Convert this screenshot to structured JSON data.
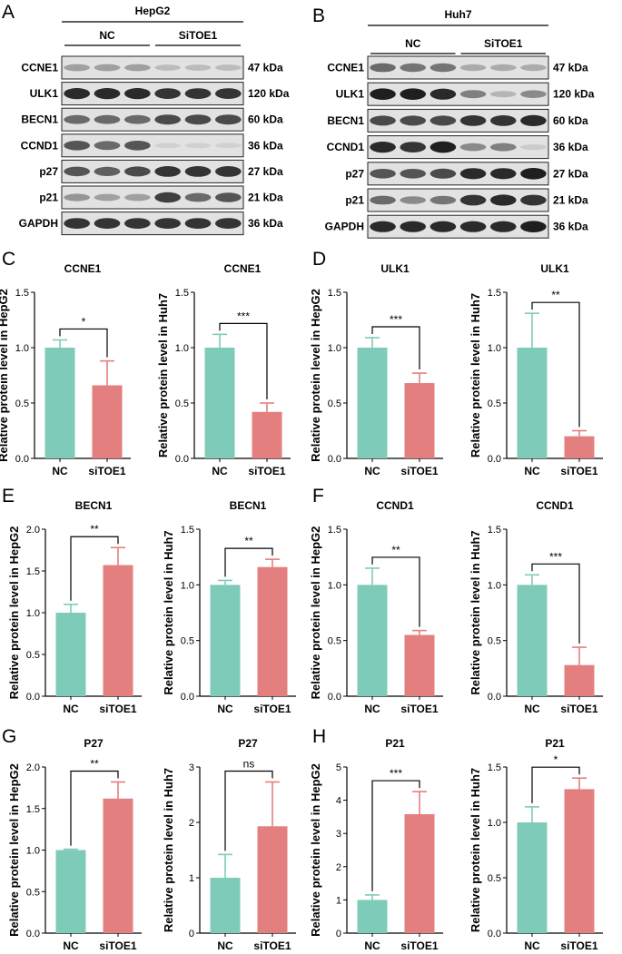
{
  "panels": {
    "A": "A",
    "B": "B",
    "C": "C",
    "D": "D",
    "E": "E",
    "F": "F",
    "G": "G",
    "H": "H"
  },
  "western_blots": [
    {
      "cell_line": "HepG2",
      "groups": [
        "NC",
        "SiTOE1"
      ],
      "rows": [
        {
          "protein": "CCNE1",
          "size": "47 kDa",
          "intensity": [
            0.35,
            0.35,
            0.35,
            0.22,
            0.22,
            0.22
          ]
        },
        {
          "protein": "ULK1",
          "size": "120 kDa",
          "intensity": [
            0.9,
            0.9,
            0.9,
            0.85,
            0.85,
            0.85
          ]
        },
        {
          "protein": "BECN1",
          "size": "60 kDa",
          "intensity": [
            0.6,
            0.6,
            0.6,
            0.75,
            0.75,
            0.75
          ]
        },
        {
          "protein": "CCND1",
          "size": "36 kDa",
          "intensity": [
            0.7,
            0.6,
            0.7,
            0.12,
            0.12,
            0.12
          ]
        },
        {
          "protein": "p27",
          "size": "27 kDa",
          "intensity": [
            0.7,
            0.65,
            0.75,
            0.85,
            0.85,
            0.85
          ]
        },
        {
          "protein": "p21",
          "size": "21 kDa",
          "intensity": [
            0.4,
            0.35,
            0.35,
            0.8,
            0.6,
            0.7
          ]
        },
        {
          "protein": "GAPDH",
          "size": "36 kDa",
          "intensity": [
            0.85,
            0.85,
            0.85,
            0.85,
            0.85,
            0.85
          ]
        }
      ]
    },
    {
      "cell_line": "Huh7",
      "groups": [
        "NC",
        "SiTOE1"
      ],
      "rows": [
        {
          "protein": "CCNE1",
          "size": "47 kDa",
          "intensity": [
            0.6,
            0.55,
            0.55,
            0.3,
            0.3,
            0.3
          ]
        },
        {
          "protein": "ULK1",
          "size": "120 kDa",
          "intensity": [
            0.95,
            0.95,
            0.9,
            0.5,
            0.25,
            0.45
          ]
        },
        {
          "protein": "BECN1",
          "size": "60 kDa",
          "intensity": [
            0.75,
            0.75,
            0.75,
            0.85,
            0.85,
            0.9
          ]
        },
        {
          "protein": "CCND1",
          "size": "36 kDa",
          "intensity": [
            0.9,
            0.85,
            0.95,
            0.45,
            0.5,
            0.15
          ]
        },
        {
          "protein": "p27",
          "size": "27 kDa",
          "intensity": [
            0.7,
            0.7,
            0.75,
            0.9,
            0.9,
            0.95
          ]
        },
        {
          "protein": "p21",
          "size": "21 kDa",
          "intensity": [
            0.6,
            0.45,
            0.55,
            0.85,
            0.9,
            0.85
          ]
        },
        {
          "protein": "GAPDH",
          "size": "36 kDa",
          "intensity": [
            0.9,
            0.9,
            0.9,
            0.9,
            0.9,
            0.95
          ]
        }
      ]
    }
  ],
  "colors": {
    "nc": "#7fcbba",
    "sitoe1": "#e47f7f",
    "band": "#151515"
  },
  "chart_data": [
    {
      "type": "bar",
      "panel": "C",
      "title": "CCNE1",
      "ylabel": "Relative protein level in HepG2",
      "categories": [
        "NC",
        "siTOE1"
      ],
      "values": [
        1.0,
        0.66
      ],
      "errors": [
        0.07,
        0.22
      ],
      "ylim": [
        0,
        1.5
      ],
      "yticks": [
        "0.0",
        "0.5",
        "1.0",
        "1.5"
      ],
      "significance": "*"
    },
    {
      "type": "bar",
      "panel": "C",
      "title": "CCNE1",
      "ylabel": "Relative protein level in Huh7",
      "categories": [
        "NC",
        "siTOE1"
      ],
      "values": [
        1.0,
        0.42
      ],
      "errors": [
        0.12,
        0.08
      ],
      "ylim": [
        0,
        1.5
      ],
      "yticks": [
        "0.0",
        "0.5",
        "1.0",
        "1.5"
      ],
      "significance": "***"
    },
    {
      "type": "bar",
      "panel": "D",
      "title": "ULK1",
      "ylabel": "Relative protein level in HepG2",
      "categories": [
        "NC",
        "siTOE1"
      ],
      "values": [
        1.0,
        0.68
      ],
      "errors": [
        0.09,
        0.09
      ],
      "ylim": [
        0,
        1.5
      ],
      "yticks": [
        "0.0",
        "0.5",
        "1.0",
        "1.5"
      ],
      "significance": "***"
    },
    {
      "type": "bar",
      "panel": "D",
      "title": "ULK1",
      "ylabel": "Relative protein level in Huh7",
      "categories": [
        "NC",
        "siTOE1"
      ],
      "values": [
        1.0,
        0.2
      ],
      "errors": [
        0.31,
        0.05
      ],
      "ylim": [
        0,
        1.5
      ],
      "yticks": [
        "0.0",
        "0.5",
        "1.0",
        "1.5"
      ],
      "significance": "**"
    },
    {
      "type": "bar",
      "panel": "E",
      "title": "BECN1",
      "ylabel": "Relative protein level in HepG2",
      "categories": [
        "NC",
        "siTOE1"
      ],
      "values": [
        1.0,
        1.57
      ],
      "errors": [
        0.1,
        0.21
      ],
      "ylim": [
        0,
        2.0
      ],
      "yticks": [
        "0.0",
        "0.5",
        "1.0",
        "1.5",
        "2.0"
      ],
      "significance": "**"
    },
    {
      "type": "bar",
      "panel": "E",
      "title": "BECN1",
      "ylabel": "Relative protein level in Huh7",
      "categories": [
        "NC",
        "siTOE1"
      ],
      "values": [
        1.0,
        1.16
      ],
      "errors": [
        0.04,
        0.07
      ],
      "ylim": [
        0,
        1.5
      ],
      "yticks": [
        "0.0",
        "0.5",
        "1.0",
        "1.5"
      ],
      "significance": "**"
    },
    {
      "type": "bar",
      "panel": "F",
      "title": "CCND1",
      "ylabel": "Relative protein level in HepG2",
      "categories": [
        "NC",
        "siTOE1"
      ],
      "values": [
        1.0,
        0.55
      ],
      "errors": [
        0.15,
        0.04
      ],
      "ylim": [
        0,
        1.5
      ],
      "yticks": [
        "0.0",
        "0.5",
        "1.0",
        "1.5"
      ],
      "significance": "**"
    },
    {
      "type": "bar",
      "panel": "F",
      "title": "CCND1",
      "ylabel": "Relative protein level in Huh7",
      "categories": [
        "NC",
        "siTOE1"
      ],
      "values": [
        1.0,
        0.28
      ],
      "errors": [
        0.09,
        0.16
      ],
      "ylim": [
        0,
        1.5
      ],
      "yticks": [
        "0.0",
        "0.5",
        "1.0",
        "1.5"
      ],
      "significance": "***"
    },
    {
      "type": "bar",
      "panel": "G",
      "title": "P27",
      "ylabel": "Relative protein level in HepG2",
      "categories": [
        "NC",
        "siTOE1"
      ],
      "values": [
        1.0,
        1.62
      ],
      "errors": [
        0.01,
        0.2
      ],
      "ylim": [
        0,
        2.0
      ],
      "yticks": [
        "0.0",
        "0.5",
        "1.0",
        "1.5",
        "2.0"
      ],
      "significance": "**"
    },
    {
      "type": "bar",
      "panel": "G",
      "title": "P27",
      "ylabel": "Relative protein level in Huh7",
      "categories": [
        "NC",
        "siTOE1"
      ],
      "values": [
        1.0,
        1.93
      ],
      "errors": [
        0.42,
        0.8
      ],
      "ylim": [
        0,
        3
      ],
      "yticks": [
        "0",
        "1",
        "2",
        "3"
      ],
      "significance": "ns"
    },
    {
      "type": "bar",
      "panel": "H",
      "title": "P21",
      "ylabel": "Relative protein level in HepG2",
      "categories": [
        "NC",
        "siTOE1"
      ],
      "values": [
        1.0,
        3.58
      ],
      "errors": [
        0.15,
        0.68
      ],
      "ylim": [
        0,
        5
      ],
      "yticks": [
        "0",
        "1",
        "2",
        "3",
        "4",
        "5"
      ],
      "significance": "***"
    },
    {
      "type": "bar",
      "panel": "H",
      "title": "P21",
      "ylabel": "Relative protein level in Huh7",
      "categories": [
        "NC",
        "siTOE1"
      ],
      "values": [
        1.0,
        1.3
      ],
      "errors": [
        0.14,
        0.1
      ],
      "ylim": [
        0,
        1.5
      ],
      "yticks": [
        "0.0",
        "0.5",
        "1.0",
        "1.5"
      ],
      "significance": "*"
    }
  ]
}
